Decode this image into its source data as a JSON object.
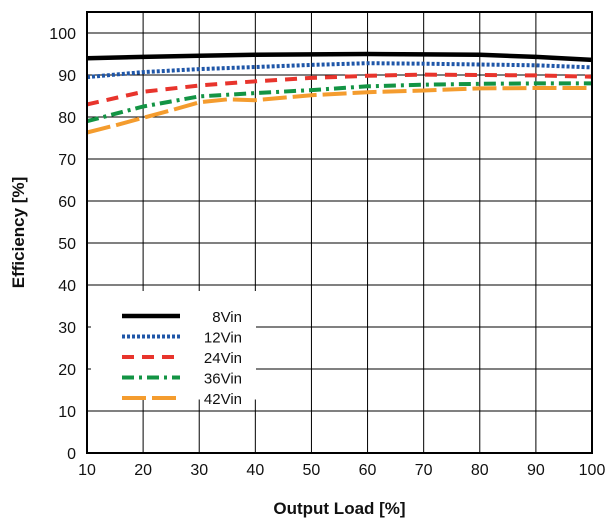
{
  "chart_data": {
    "type": "line",
    "title": "",
    "xlabel": "Output Load [%]",
    "ylabel": "Efficiency [%]",
    "xlim": [
      10,
      100
    ],
    "ylim": [
      0,
      105
    ],
    "xticks": [
      10,
      20,
      30,
      40,
      50,
      60,
      70,
      80,
      90,
      100
    ],
    "yticks": [
      0,
      10,
      20,
      30,
      40,
      50,
      60,
      70,
      80,
      90,
      100
    ],
    "grid": true,
    "legend_position": "bottom-left",
    "series": [
      {
        "name": "8Vin",
        "color": "#000000",
        "dash": "solid",
        "x": [
          10,
          20,
          30,
          40,
          50,
          60,
          70,
          80,
          90,
          100
        ],
        "y": [
          94.0,
          94.3,
          94.6,
          94.8,
          94.9,
          95.0,
          94.9,
          94.8,
          94.3,
          93.6
        ]
      },
      {
        "name": "12Vin",
        "color": "#1f56a8",
        "dash": "dotted",
        "x": [
          10,
          20,
          30,
          40,
          50,
          60,
          70,
          80,
          90,
          100
        ],
        "y": [
          89.5,
          90.7,
          91.4,
          91.9,
          92.4,
          92.8,
          92.7,
          92.5,
          92.3,
          91.8
        ]
      },
      {
        "name": "24Vin",
        "color": "#e8342c",
        "dash": "dashed",
        "x": [
          10,
          20,
          30,
          40,
          50,
          60,
          70,
          80,
          90,
          100
        ],
        "y": [
          83.0,
          86.0,
          87.5,
          88.5,
          89.3,
          89.8,
          90.1,
          90.0,
          89.9,
          89.6
        ]
      },
      {
        "name": "36Vin",
        "color": "#139444",
        "dash": "dash-dot",
        "x": [
          10,
          20,
          30,
          40,
          50,
          60,
          70,
          80,
          90,
          100
        ],
        "y": [
          79.0,
          82.5,
          84.9,
          85.7,
          86.4,
          87.3,
          87.7,
          87.9,
          88.0,
          88.0
        ]
      },
      {
        "name": "42Vin",
        "color": "#f49c2e",
        "dash": "long-dash",
        "x": [
          10,
          15,
          20,
          25,
          30,
          35,
          40,
          50,
          60,
          70,
          80,
          90,
          100
        ],
        "y": [
          76.3,
          78.0,
          79.8,
          81.6,
          83.5,
          84.2,
          84.0,
          85.2,
          85.9,
          86.3,
          86.8,
          86.9,
          86.9
        ]
      }
    ]
  }
}
